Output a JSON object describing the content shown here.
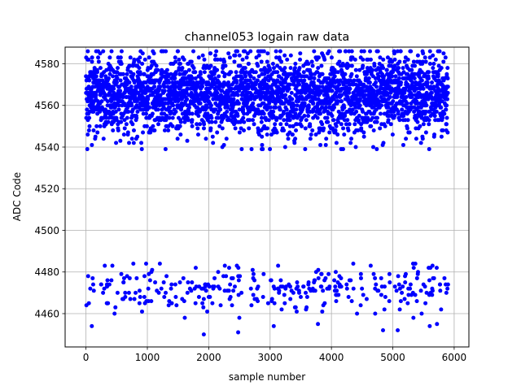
{
  "chart_data": {
    "type": "scatter",
    "title": "channel053 logain raw data",
    "xlabel": "sample number",
    "ylabel": "ADC Code",
    "xlim": [
      -340,
      6240
    ],
    "ylim": [
      4444,
      4588
    ],
    "xticks": [
      0,
      1000,
      2000,
      3000,
      4000,
      5000,
      6000
    ],
    "yticks": [
      4460,
      4480,
      4500,
      4520,
      4540,
      4560,
      4580
    ],
    "grid": true,
    "marker_color": "#0000ff",
    "series": [
      {
        "x_range": [
          0,
          5900
        ],
        "bands": [
          {
            "center": 4565,
            "min": 4539,
            "max": 4586,
            "spread": 9.5,
            "weight": 0.9
          },
          {
            "center": 4472,
            "min": 4450,
            "max": 4484,
            "spread": 6.0,
            "weight": 0.1
          }
        ],
        "sample_points": [
          [
            28,
            4563
          ],
          [
            140,
            4578
          ],
          [
            520,
            4551
          ],
          [
            910,
            4539
          ],
          [
            1120,
            4580
          ],
          [
            1640,
            4566
          ],
          [
            2290,
            4544
          ],
          [
            2870,
            4586
          ],
          [
            3400,
            4572
          ],
          [
            3820,
            4541
          ],
          [
            3940,
            4585
          ],
          [
            4190,
            4539
          ],
          [
            4800,
            4556
          ],
          [
            5210,
            4583
          ],
          [
            5880,
            4575
          ],
          [
            70,
            4472
          ],
          [
            95,
            4454
          ],
          [
            430,
            4483
          ],
          [
            980,
            4484
          ],
          [
            1610,
            4458
          ],
          [
            1920,
            4450
          ],
          [
            2480,
            4451
          ],
          [
            3060,
            4454
          ],
          [
            3780,
            4455
          ],
          [
            4130,
            4478
          ],
          [
            4640,
            4483
          ],
          [
            5080,
            4452
          ],
          [
            5470,
            4460
          ],
          [
            5720,
            4455
          ],
          [
            5900,
            4474
          ]
        ]
      }
    ]
  }
}
